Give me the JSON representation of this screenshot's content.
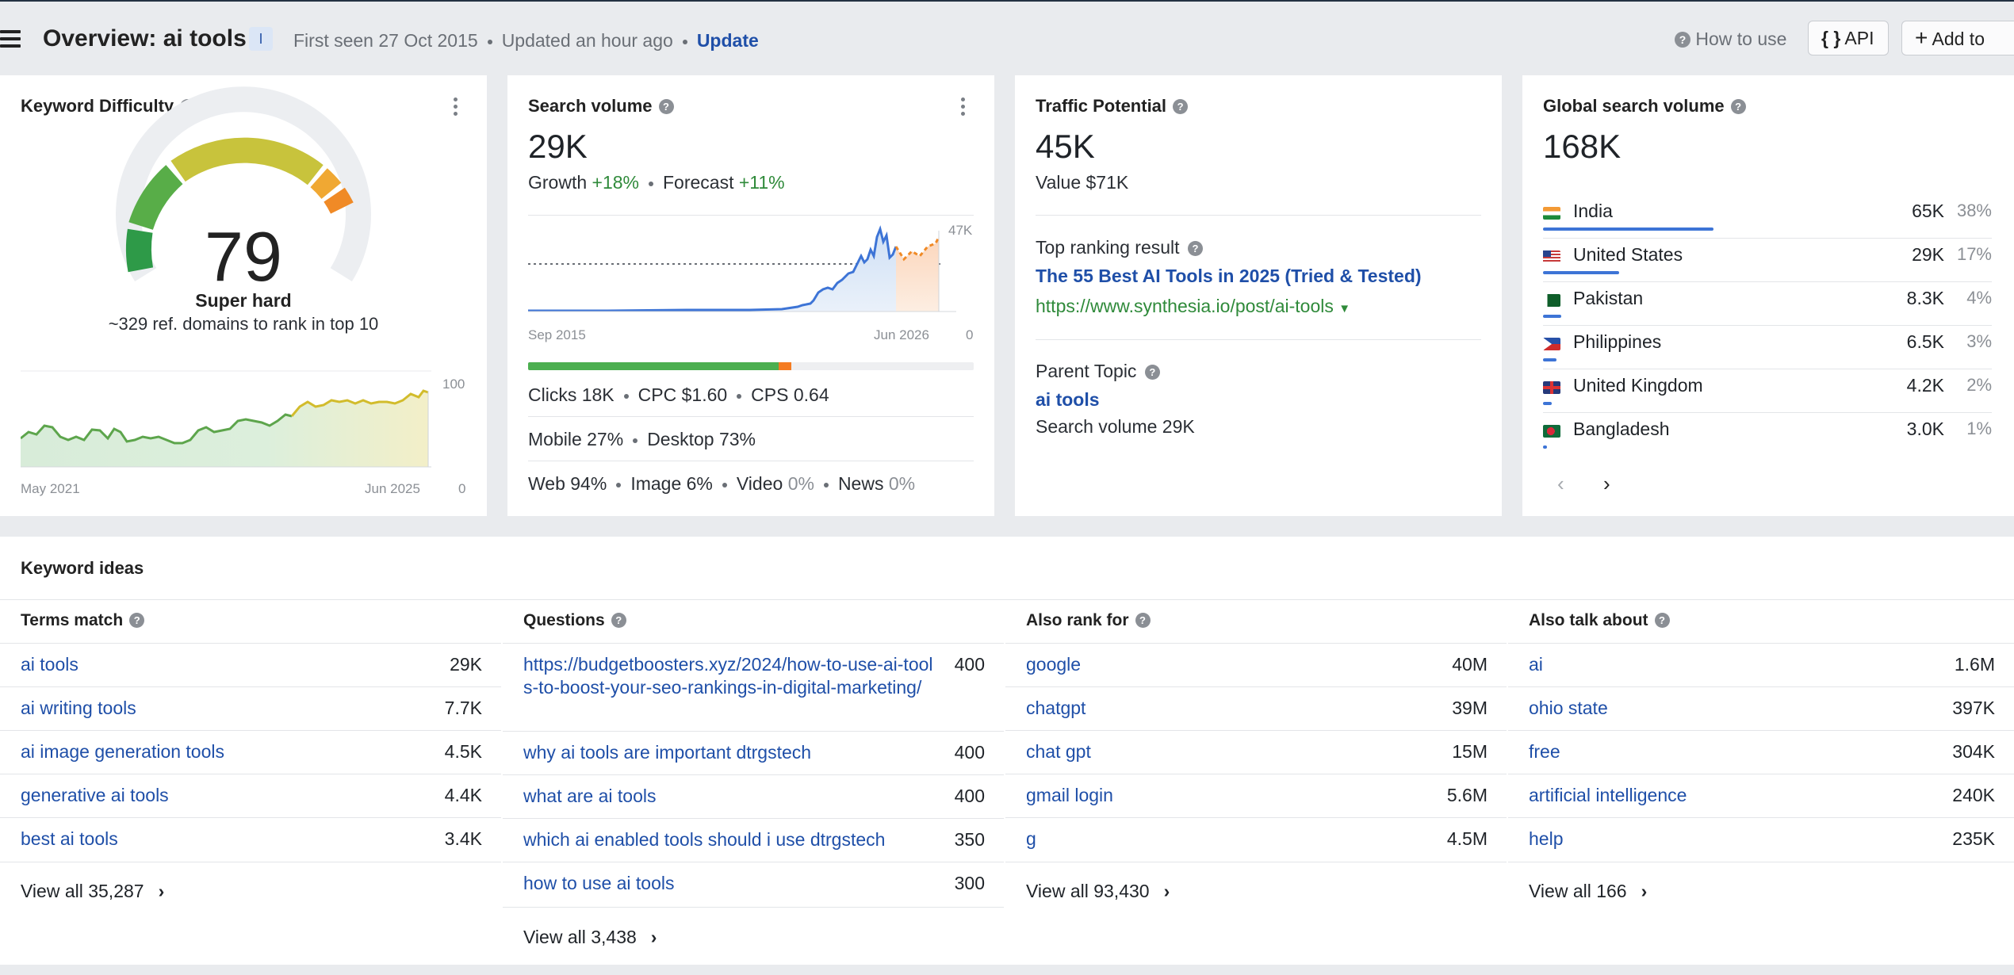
{
  "header": {
    "title": "Overview: ai tools",
    "badge": "I",
    "first_seen": "First seen 27 Oct 2015",
    "updated": "Updated an hour ago",
    "update_link": "Update",
    "how_to_use": "How to use",
    "api_label": "API",
    "add_to_label": "Add to"
  },
  "kd": {
    "title": "Keyword Difficulty",
    "value": "79",
    "label": "Super hard",
    "sub": "~329 ref. domains to rank in top 10",
    "chart_start": "May 2021",
    "chart_end": "Jun 2025",
    "ymax": "100",
    "ymin": "0"
  },
  "sv": {
    "title": "Search volume",
    "value": "29K",
    "growth_label": "Growth",
    "growth_value": "+18%",
    "forecast_label": "Forecast",
    "forecast_value": "+11%",
    "chart_start": "Sep 2015",
    "chart_end": "Jun 2026",
    "ymax": "47K",
    "ymin": "0",
    "clicks": "Clicks 18K",
    "cpc": "CPC $1.60",
    "cps": "CPS 0.64",
    "mobile": "Mobile 27%",
    "desktop": "Desktop 73%",
    "web": "Web 94%",
    "image": "Image 6%",
    "video_label": "Video",
    "video_value": "0%",
    "news_label": "News",
    "news_value": "0%",
    "split_colors": {
      "clicks": "#4caf50",
      "paid": "#f57c22",
      "none": "#eeeff1"
    }
  },
  "tp": {
    "title": "Traffic Potential",
    "value": "45K",
    "value_usd": "Value $71K",
    "top_ranking_label": "Top ranking result",
    "top_result_title": "The 55 Best AI Tools in 2025 (Tried & Tested)",
    "top_result_url": "https://www.synthesia.io/post/ai-tools",
    "parent_label": "Parent Topic",
    "parent_topic": "ai tools",
    "parent_volume": "Search volume 29K"
  },
  "gsv": {
    "title": "Global search volume",
    "value": "168K",
    "countries": [
      {
        "name": "India",
        "volume": "65K",
        "pct": "38%",
        "share": 0.38
      },
      {
        "name": "United States",
        "volume": "29K",
        "pct": "17%",
        "share": 0.17
      },
      {
        "name": "Pakistan",
        "volume": "8.3K",
        "pct": "4%",
        "share": 0.04
      },
      {
        "name": "Philippines",
        "volume": "6.5K",
        "pct": "3%",
        "share": 0.03
      },
      {
        "name": "United Kingdom",
        "volume": "4.2K",
        "pct": "2%",
        "share": 0.02
      },
      {
        "name": "Bangladesh",
        "volume": "3.0K",
        "pct": "1%",
        "share": 0.01
      }
    ],
    "prev_icon": "chevron-left-icon",
    "next_icon": "chevron-right-icon"
  },
  "ideas": {
    "title": "Keyword ideas",
    "terms": {
      "title": "Terms match",
      "rows": [
        {
          "kw": "ai tools",
          "vol": "29K"
        },
        {
          "kw": "ai writing tools",
          "vol": "7.7K"
        },
        {
          "kw": "ai image generation tools",
          "vol": "4.5K"
        },
        {
          "kw": "generative ai tools",
          "vol": "4.4K"
        },
        {
          "kw": "best ai tools",
          "vol": "3.4K"
        }
      ],
      "view_all": "View all 35,287"
    },
    "questions": {
      "title": "Questions",
      "rows": [
        {
          "kw": "https://budgetboosters.xyz/2024/how-to-use-ai-tools-to-boost-your-seo-rankings-in-digital-marketing/",
          "vol": "400"
        },
        {
          "kw": "why ai tools are important dtrgstech",
          "vol": "400"
        },
        {
          "kw": "what are ai tools",
          "vol": "400"
        },
        {
          "kw": "which ai enabled tools should i use dtrgstech",
          "vol": "350"
        },
        {
          "kw": "how to use ai tools",
          "vol": "300"
        }
      ],
      "view_all": "View all 3,438"
    },
    "also_rank": {
      "title": "Also rank for",
      "rows": [
        {
          "kw": "google",
          "vol": "40M"
        },
        {
          "kw": "chatgpt",
          "vol": "39M"
        },
        {
          "kw": "chat gpt",
          "vol": "15M"
        },
        {
          "kw": "gmail login",
          "vol": "5.6M"
        },
        {
          "kw": "g",
          "vol": "4.5M"
        }
      ],
      "view_all": "View all 93,430"
    },
    "also_talk": {
      "title": "Also talk about",
      "rows": [
        {
          "kw": "ai",
          "vol": "1.6M"
        },
        {
          "kw": "ohio state",
          "vol": "397K"
        },
        {
          "kw": "free",
          "vol": "304K"
        },
        {
          "kw": "artificial intelligence",
          "vol": "240K"
        },
        {
          "kw": "help",
          "vol": "235K"
        }
      ],
      "view_all": "View all 166"
    }
  }
}
